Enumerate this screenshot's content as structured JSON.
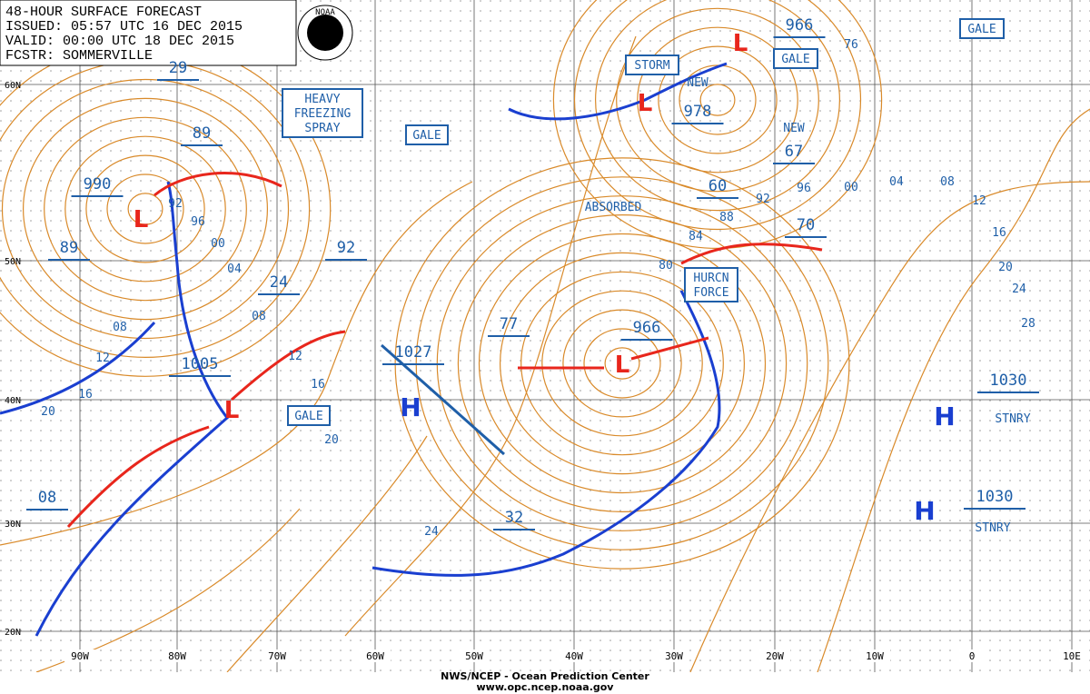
{
  "header": {
    "lines": [
      "48-HOUR SURFACE FORECAST",
      "ISSUED: 05:57 UTC 16 DEC 2015",
      "VALID:  00:00 UTC 18 DEC 2015",
      "FCSTR: SOMMERVILLE"
    ]
  },
  "logo": "NOAA",
  "grid": {
    "lat_labels": [
      "60N",
      "50N",
      "40N",
      "30N",
      "20N"
    ],
    "lon_labels": [
      "90W",
      "80W",
      "70W",
      "60W",
      "50W",
      "40W",
      "30W",
      "20W",
      "10W",
      "0",
      "10E"
    ]
  },
  "warnings": [
    {
      "lines": [
        "HEAVY",
        "FREEZING",
        "SPRAY"
      ]
    },
    {
      "lines": [
        "GALE"
      ]
    },
    {
      "lines": [
        "STORM"
      ]
    },
    {
      "lines": [
        "GALE"
      ]
    },
    {
      "lines": [
        "GALE"
      ]
    },
    {
      "lines": [
        "HURCN",
        "FORCE"
      ]
    },
    {
      "lines": [
        "GALE"
      ]
    }
  ],
  "pressure_labels": [
    "29",
    "89",
    "990",
    "89",
    "24",
    "92",
    "1005",
    "1027",
    "77",
    "966",
    "978",
    "60",
    "67",
    "70",
    "966",
    "08",
    "32",
    "1030",
    "1030"
  ],
  "isobar_labels": [
    "92",
    "96",
    "00",
    "04",
    "08",
    "12",
    "16",
    "20",
    "24",
    "08",
    "12",
    "16",
    "20",
    "80",
    "84",
    "88",
    "92",
    "96",
    "00",
    "04",
    "08",
    "12",
    "16",
    "20",
    "24",
    "28",
    "76"
  ],
  "notes": [
    "ABSORBED",
    "NEW",
    "NEW",
    "STNRY",
    "STNRY"
  ],
  "highs": [
    "H",
    "H",
    "H"
  ],
  "lows": [
    "L",
    "L",
    "L",
    "L",
    "L"
  ],
  "footer": {
    "lines": [
      "NWS/NCEP - Ocean Prediction Center",
      "www.opc.ncep.noaa.gov"
    ]
  }
}
